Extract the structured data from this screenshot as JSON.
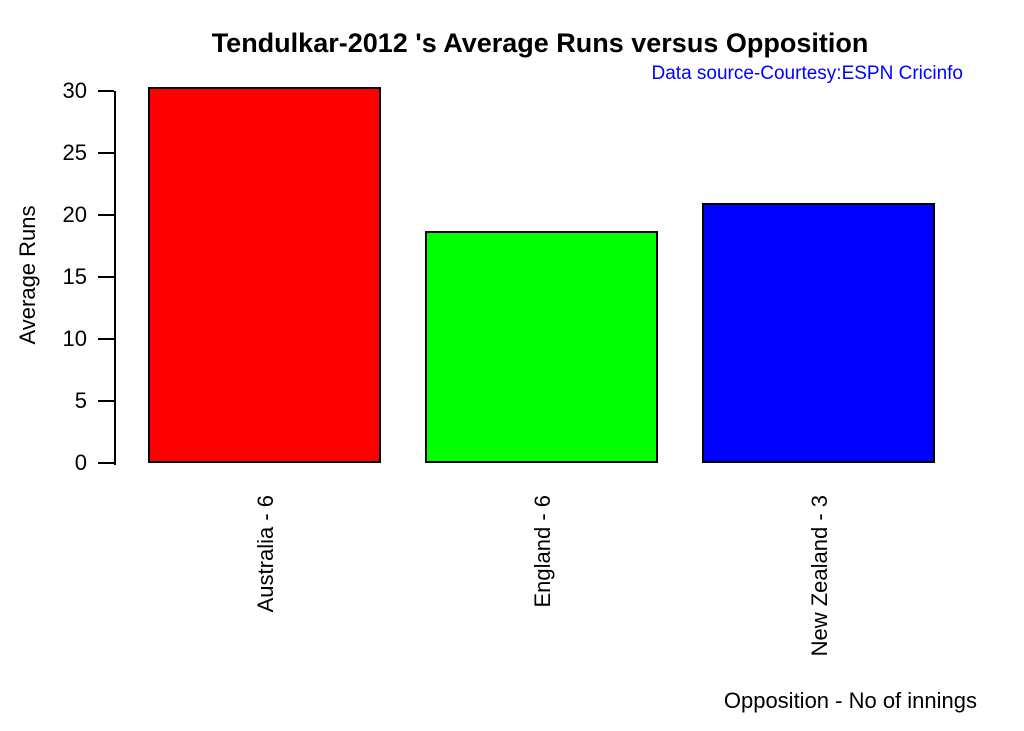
{
  "chart_data": {
    "type": "bar",
    "title": "Tendulkar-2012 's Average Runs versus Opposition",
    "subtitle": "Data source-Courtesy:ESPN Cricinfo",
    "subtitle_color": "#0000ff",
    "ylabel": "Average Runs",
    "xlabel": "Opposition - No of innings",
    "categories": [
      "Australia - 6",
      "England - 6",
      "New Zealand - 3"
    ],
    "values": [
      30.33,
      18.67,
      21
    ],
    "bar_colors": [
      "#ff0000",
      "#00ff00",
      "#0000ff"
    ],
    "bar_border_color": "#000000",
    "yticks": [
      0,
      5,
      10,
      15,
      20,
      25,
      30
    ],
    "ylim": [
      0,
      30
    ],
    "grid": false,
    "legend": null,
    "axis_color": "#000000",
    "x_tick_label_rotation_deg": 90
  }
}
